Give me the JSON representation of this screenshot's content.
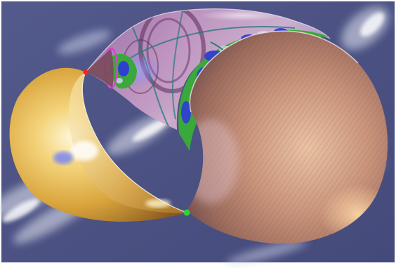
{
  "scene": {
    "background_color": "#4a4f80",
    "frame_color": "#ffffff",
    "cloud_color": "#e8eaf4",
    "gold_shape_color": "#e7b74c",
    "copper_shape_color": "#c08a72",
    "glass_shape_color": "#b88fbf",
    "globe_green": "#3aa83a",
    "globe_blue": "#2f3fd0",
    "magenta_ring_color": "#e23ad8",
    "marker_colors": [
      "#ff2020",
      "#2ad43a"
    ]
  }
}
